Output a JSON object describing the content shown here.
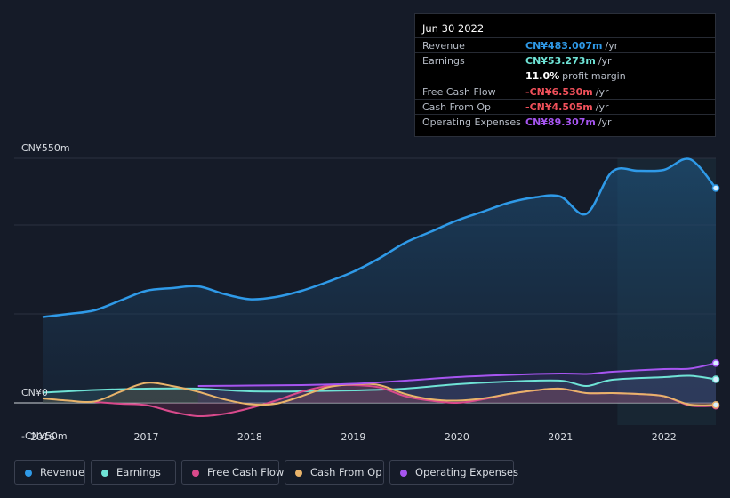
{
  "chart_data": {
    "type": "area",
    "title": "",
    "xlabel": "",
    "ylabel": "",
    "y_tick_labels": [
      "CN¥550m",
      "CN¥0",
      "-CN¥50m"
    ],
    "ylim": [
      -50,
      550
    ],
    "xlim": [
      2016,
      2022.5
    ],
    "x_tick_labels": [
      "2016",
      "2017",
      "2018",
      "2019",
      "2020",
      "2021",
      "2022"
    ],
    "x_tick_values": [
      2016,
      2017,
      2018,
      2019,
      2020,
      2021,
      2022
    ],
    "grid": true,
    "legend_position": "bottom",
    "highlight_start": 2021.55,
    "series": [
      {
        "name": "Revenue",
        "color": "#2f9ae8",
        "x": [
          2016.0,
          2016.25,
          2016.5,
          2016.75,
          2017.0,
          2017.25,
          2017.5,
          2017.75,
          2018.0,
          2018.25,
          2018.5,
          2018.75,
          2019.0,
          2019.25,
          2019.5,
          2019.75,
          2020.0,
          2020.25,
          2020.5,
          2020.75,
          2021.0,
          2021.25,
          2021.5,
          2021.75,
          2022.0,
          2022.25,
          2022.5
        ],
        "values": [
          193,
          200,
          208,
          230,
          252,
          258,
          262,
          245,
          233,
          238,
          252,
          272,
          295,
          325,
          360,
          385,
          410,
          430,
          450,
          462,
          464,
          425,
          520,
          522,
          524,
          548,
          483
        ]
      },
      {
        "name": "Earnings",
        "color": "#6fe3d6",
        "x": [
          2016.0,
          2016.5,
          2017.0,
          2017.5,
          2018.0,
          2018.5,
          2019.0,
          2019.5,
          2020.0,
          2020.5,
          2021.0,
          2021.25,
          2021.5,
          2022.0,
          2022.25,
          2022.5
        ],
        "values": [
          23,
          29,
          32,
          32,
          26,
          26,
          28,
          32,
          42,
          48,
          50,
          38,
          52,
          58,
          61,
          53
        ]
      },
      {
        "name": "Free Cash Flow",
        "color": "#d94a8c",
        "x": [
          2016.5,
          2016.75,
          2017.0,
          2017.25,
          2017.5,
          2017.75,
          2018.0,
          2018.25,
          2018.5,
          2018.75,
          2019.0,
          2019.25,
          2019.5,
          2019.75,
          2020.0,
          2020.25,
          2020.5,
          2020.75,
          2021.0,
          2021.25,
          2021.5,
          2021.75,
          2022.0,
          2022.25,
          2022.5
        ],
        "values": [
          2,
          -2,
          -5,
          -20,
          -30,
          -25,
          -12,
          5,
          25,
          38,
          40,
          35,
          15,
          5,
          0,
          8,
          20,
          28,
          32,
          22,
          22,
          20,
          15,
          -6,
          -6.5
        ]
      },
      {
        "name": "Cash From Op",
        "color": "#e8b36a",
        "x": [
          2016.0,
          2016.25,
          2016.5,
          2016.75,
          2017.0,
          2017.25,
          2017.5,
          2017.75,
          2018.0,
          2018.25,
          2018.5,
          2018.75,
          2019.0,
          2019.25,
          2019.5,
          2019.75,
          2020.0,
          2020.25,
          2020.5,
          2020.75,
          2021.0,
          2021.25,
          2021.5,
          2021.75,
          2022.0,
          2022.25,
          2022.5
        ],
        "values": [
          10,
          5,
          3,
          25,
          45,
          38,
          25,
          8,
          -3,
          -2,
          15,
          35,
          42,
          40,
          20,
          8,
          5,
          10,
          20,
          28,
          32,
          22,
          22,
          20,
          15,
          -4,
          -4.5
        ]
      },
      {
        "name": "Operating Expenses",
        "color": "#a655f0",
        "x": [
          2017.5,
          2018.0,
          2018.5,
          2019.0,
          2019.5,
          2020.0,
          2020.5,
          2021.0,
          2021.25,
          2021.5,
          2022.0,
          2022.25,
          2022.5
        ],
        "values": [
          38,
          39,
          40,
          43,
          50,
          58,
          63,
          66,
          65,
          70,
          76,
          77,
          89.3
        ]
      }
    ]
  },
  "tooltip": {
    "date": "Jun 30 2022",
    "rows": [
      {
        "label": "Revenue",
        "value": "CN¥483.007m",
        "unit": "/yr",
        "color": "#2f9ae8"
      },
      {
        "label": "Earnings",
        "value": "CN¥53.273m",
        "unit": "/yr",
        "color": "#6fe3d6"
      },
      {
        "label": "",
        "value": "11.0%",
        "unit": "profit margin",
        "color": "#ffffff"
      },
      {
        "label": "Free Cash Flow",
        "value": "-CN¥6.530m",
        "unit": "/yr",
        "color": "#f0505a"
      },
      {
        "label": "Cash From Op",
        "value": "-CN¥4.505m",
        "unit": "/yr",
        "color": "#f0505a"
      },
      {
        "label": "Operating Expenses",
        "value": "CN¥89.307m",
        "unit": "/yr",
        "color": "#a655f0"
      }
    ]
  },
  "legend": [
    {
      "label": "Revenue",
      "color": "#2f9ae8"
    },
    {
      "label": "Earnings",
      "color": "#6fe3d6"
    },
    {
      "label": "Free Cash Flow",
      "color": "#d94a8c"
    },
    {
      "label": "Cash From Op",
      "color": "#e8b36a"
    },
    {
      "label": "Operating Expenses",
      "color": "#a655f0"
    }
  ]
}
